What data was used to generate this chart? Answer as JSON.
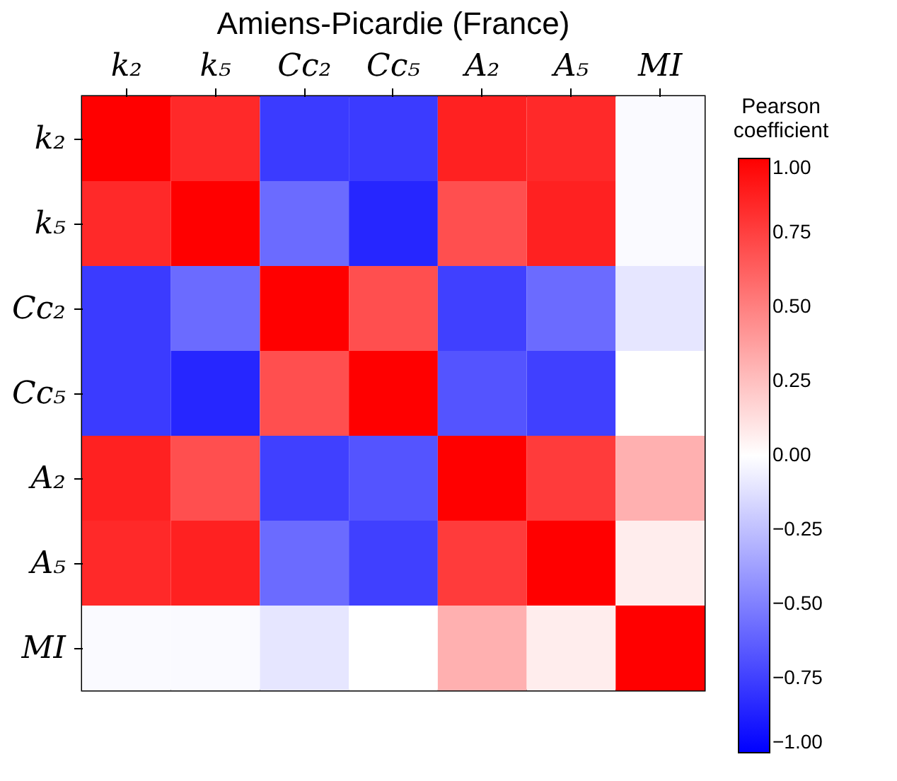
{
  "chart_data": {
    "type": "heatmap",
    "title": "Amiens-Picardie (France)",
    "clabel": "Pearson coefficient",
    "categories": [
      "k₂",
      "k₅",
      "Cc₂",
      "Cc₅",
      "A₂",
      "A₅",
      "MI"
    ],
    "y_categories": [
      "k₂",
      "k₅",
      "Cc₂",
      "Cc₅",
      "A₂",
      "A₅",
      "MI"
    ],
    "cells": [
      [
        1,
        0.84,
        -0.77,
        -0.77,
        0.87,
        0.84,
        -0.02
      ],
      [
        0.84,
        1,
        -0.58,
        -0.85,
        0.69,
        0.87,
        -0.02
      ],
      [
        -0.77,
        -0.58,
        1,
        0.69,
        -0.75,
        -0.58,
        -0.1
      ],
      [
        -0.77,
        -0.85,
        0.69,
        1,
        -0.67,
        -0.75,
        0
      ],
      [
        0.87,
        0.69,
        -0.75,
        -0.67,
        1,
        0.77,
        0.31
      ],
      [
        0.84,
        0.87,
        -0.58,
        -0.75,
        0.77,
        1,
        0.07
      ],
      [
        -0.02,
        -0.02,
        -0.1,
        0,
        0.31,
        0.07,
        1
      ]
    ],
    "clim": [
      -1,
      1
    ],
    "cticks": [
      {
        "value": -1,
        "label": "−1.00"
      },
      {
        "value": -0.75,
        "label": "−0.75"
      },
      {
        "value": -0.5,
        "label": "−0.50"
      },
      {
        "value": -0.25,
        "label": "−0.25"
      },
      {
        "value": 0,
        "label": "0.00"
      },
      {
        "value": 0.25,
        "label": "0.25"
      },
      {
        "value": 0.5,
        "label": "0.50"
      },
      {
        "value": 0.75,
        "label": "0.75"
      },
      {
        "value": 1,
        "label": "1.00"
      }
    ]
  }
}
